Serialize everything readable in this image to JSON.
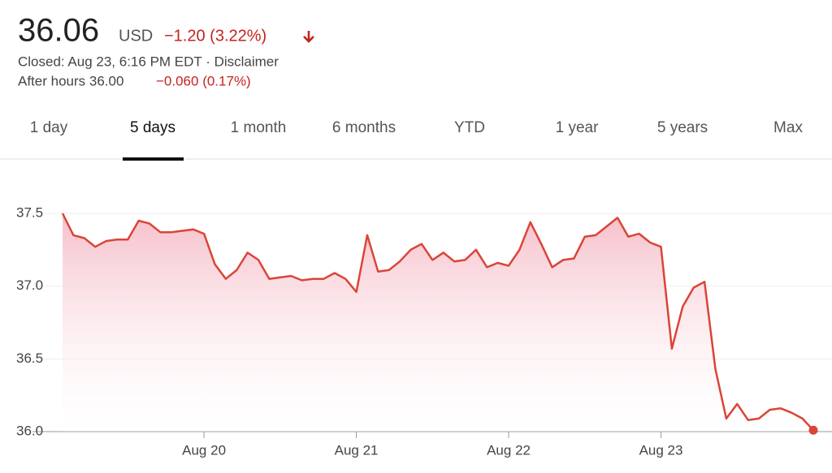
{
  "header": {
    "price": "36.06",
    "currency": "USD",
    "change": "−1.20 (3.22%)",
    "status": "Closed: Aug 23, 6:16 PM EDT · Disclaimer",
    "after_hours": "After hours 36.00",
    "after_hours_change": "−0.060 (0.17%)"
  },
  "tabs": [
    "1 day",
    "5 days",
    "1 month",
    "6 months",
    "YTD",
    "1 year",
    "5 years",
    "Max"
  ],
  "chart_data": {
    "type": "line",
    "color": "#db4437",
    "categories": [
      null,
      null,
      null,
      null,
      null,
      null,
      null,
      null,
      null,
      null,
      null,
      null,
      null,
      "Aug 20",
      null,
      null,
      null,
      null,
      null,
      null,
      null,
      null,
      null,
      null,
      null,
      null,
      null,
      "Aug 21",
      null,
      null,
      null,
      null,
      null,
      null,
      null,
      null,
      null,
      null,
      null,
      null,
      null,
      "Aug 22",
      null,
      null,
      null,
      null,
      null,
      null,
      null,
      null,
      null,
      null,
      null,
      null,
      null,
      "Aug 23",
      null,
      null,
      null,
      null,
      null,
      null,
      null,
      null,
      null,
      null,
      null,
      null,
      null,
      null
    ],
    "values": [
      37.5,
      37.35,
      37.33,
      37.27,
      37.31,
      37.32,
      37.32,
      37.45,
      37.43,
      37.37,
      37.37,
      37.38,
      37.39,
      37.36,
      37.15,
      37.05,
      37.11,
      37.23,
      37.18,
      37.05,
      37.06,
      37.07,
      37.04,
      37.05,
      37.05,
      37.09,
      37.05,
      36.96,
      37.35,
      37.1,
      37.11,
      37.17,
      37.25,
      37.29,
      37.18,
      37.23,
      37.17,
      37.18,
      37.25,
      37.13,
      37.16,
      37.14,
      37.25,
      37.44,
      37.29,
      37.13,
      37.18,
      37.19,
      37.34,
      37.35,
      37.41,
      37.47,
      37.34,
      37.36,
      37.3,
      37.27,
      36.57,
      36.86,
      36.99,
      37.03,
      36.43,
      36.09,
      36.19,
      36.08,
      36.09,
      36.15,
      36.16,
      36.13,
      36.09,
      36.01
    ],
    "ylim": [
      36.0,
      37.5
    ],
    "yticks": [
      {
        "value": 37.5,
        "label": "37.5"
      },
      {
        "value": 37.0,
        "label": "37.0"
      },
      {
        "value": 36.5,
        "label": "36.5"
      },
      {
        "value": 36.0,
        "label": "36.0"
      }
    ],
    "grid": true
  }
}
